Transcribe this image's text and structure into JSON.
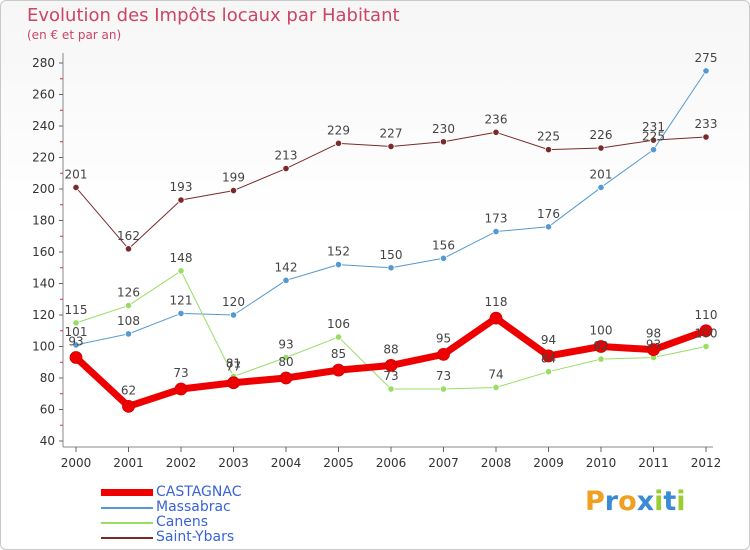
{
  "chart_data": {
    "type": "line",
    "title": "Evolution des Impôts locaux par Habitant",
    "subtitle": "(en € et par an)",
    "xlabel": "",
    "ylabel": "",
    "ylim": [
      40,
      280
    ],
    "yticks": [
      "40",
      "60",
      "80",
      "100",
      "120",
      "140",
      "160",
      "180",
      "200",
      "220",
      "240",
      "260",
      "280"
    ],
    "categories": [
      "2000",
      "2001",
      "2002",
      "2003",
      "2004",
      "2005",
      "2006",
      "2007",
      "2008",
      "2009",
      "2010",
      "2011",
      "2012"
    ],
    "series": [
      {
        "name": "Saint-Ybars",
        "color": "#7a2a2a",
        "width": 1,
        "values": [
          201,
          162,
          193,
          199,
          213,
          229,
          227,
          230,
          236,
          225,
          226,
          231,
          233
        ],
        "labels": [
          "201",
          "162",
          "193",
          "199",
          "213",
          "229",
          "227",
          "230",
          "236",
          "225",
          "226",
          "231",
          "233"
        ]
      },
      {
        "name": "Massabrac",
        "color": "#5599d0",
        "width": 1,
        "values": [
          101,
          108,
          121,
          120,
          142,
          152,
          150,
          156,
          173,
          176,
          201,
          225,
          275
        ],
        "labels": [
          "101",
          "108",
          "121",
          "120",
          "142",
          "152",
          "150",
          "156",
          "173",
          "176",
          "201",
          "225",
          "275"
        ]
      },
      {
        "name": "Canens",
        "color": "#99dd66",
        "width": 1,
        "values": [
          115,
          126,
          148,
          81,
          93,
          106,
          73,
          73,
          74,
          84,
          92,
          93,
          100
        ],
        "labels": [
          "115",
          "126",
          "148",
          "81",
          "93",
          "106",
          "73",
          "73",
          "74",
          "84",
          "92",
          "93",
          "100"
        ]
      },
      {
        "name": "CASTAGNAC",
        "color": "#ee0000",
        "width": 7,
        "values": [
          93,
          62,
          73,
          77,
          80,
          85,
          88,
          95,
          118,
          94,
          100,
          98,
          110
        ],
        "labels": [
          "93",
          "62",
          "73",
          "77",
          "80",
          "85",
          "88",
          "95",
          "118",
          "94",
          "100",
          "98",
          "110"
        ]
      }
    ],
    "legend": [
      {
        "name": "CASTAGNAC",
        "color": "#ee0000",
        "width": 7
      },
      {
        "name": "Massabrac",
        "color": "#5599d0",
        "width": 2
      },
      {
        "name": "Canens",
        "color": "#99dd66",
        "width": 2
      },
      {
        "name": "Saint-Ybars",
        "color": "#7a2a2a",
        "width": 2
      }
    ],
    "legend_position": "bottom-left",
    "grid": false
  },
  "logo": {
    "letters": [
      "P",
      "r",
      "o",
      "x",
      "i",
      "t",
      "i"
    ],
    "colors": [
      "#f0a020",
      "#3a8ad8",
      "#f0a020",
      "#3a8ad8",
      "#9acd32",
      "#3a8ad8",
      "#9acd32"
    ]
  }
}
